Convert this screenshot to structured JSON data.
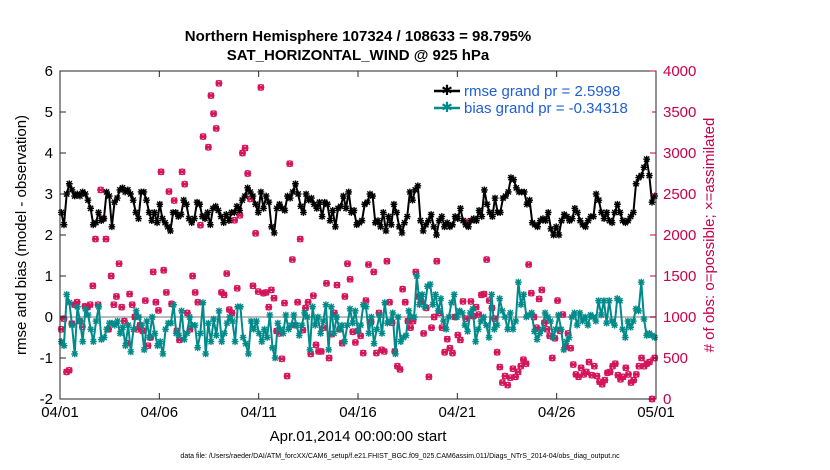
{
  "chart_data": {
    "type": "line",
    "title": "Northern Hemisphere 107324 / 108633 = 98.795%",
    "subtitle": "SAT_HORIZONTAL_WIND @ 925 hPa",
    "xlabel": "Apr.01,2014 00:00:00 start",
    "ylabel": "rmse and bias (model - observation)",
    "ylabel_right": "# of obs: o=possible; ×=assimilated",
    "footer": "data file: /Users/raeder/DAI/ATM_forcXX/CAM6_setup/f.e21.FHIST_BGC.f09_025.CAM6assim.011/Diags_NTrS_2014-04/obs_diag_output.nc",
    "xlim": [
      0,
      30
    ],
    "ylim": [
      -2,
      6
    ],
    "ylim_right": [
      0,
      4000
    ],
    "x_ticks": [
      0,
      5,
      10,
      15,
      20,
      25,
      30
    ],
    "x_tick_labels": [
      "04/01",
      "04/06",
      "04/11",
      "04/16",
      "04/21",
      "04/26",
      "05/01"
    ],
    "y_ticks": [
      -2,
      -1,
      0,
      1,
      2,
      3,
      4,
      5,
      6
    ],
    "y_tick_labels": [
      "-2",
      "-1",
      "0",
      "1",
      "2",
      "3",
      "4",
      "5",
      "6"
    ],
    "y_right_ticks": [
      0,
      500,
      1000,
      1500,
      2000,
      2500,
      3000,
      3500,
      4000
    ],
    "y_right_tick_labels": [
      "0",
      "500",
      "1000",
      "1500",
      "2000",
      "2500",
      "3000",
      "3500",
      "4000"
    ],
    "zero_line": 0,
    "series": [
      {
        "name": "rmse grand pr = 2.5998",
        "color": "#000000",
        "marker": "star",
        "values": [
          2.55,
          2.25,
          3.0,
          3.25,
          3.1,
          2.95,
          3.0,
          2.95,
          3.05,
          3.0,
          2.85,
          2.65,
          2.25,
          2.3,
          2.55,
          2.35,
          2.4,
          3.05,
          2.95,
          2.2,
          2.8,
          2.9,
          3.1,
          3.15,
          3.05,
          3.1,
          3.0,
          2.85,
          2.55,
          2.4,
          3.05,
          3.05,
          2.85,
          2.55,
          2.35,
          2.55,
          2.3,
          2.75,
          2.4,
          2.3,
          2.2,
          2.1,
          2.55,
          2.55,
          2.45,
          2.5,
          2.85,
          2.75,
          2.4,
          2.3,
          2.4,
          2.8,
          2.75,
          2.45,
          2.4,
          2.55,
          2.25,
          2.65,
          2.7,
          2.6,
          2.45,
          2.3,
          2.5,
          2.35,
          2.55,
          2.55,
          2.7,
          2.6,
          2.85,
          2.95,
          3.15,
          3.05,
          2.95,
          2.75,
          2.55,
          3.05,
          2.65,
          2.95,
          2.8,
          2.2,
          2.05,
          2.65,
          2.75,
          2.65,
          2.6,
          2.95,
          2.9,
          3.05,
          3.25,
          3.0,
          2.7,
          2.55,
          3.0,
          2.85,
          2.9,
          2.75,
          2.65,
          2.8,
          2.45,
          2.8,
          2.75,
          2.35,
          2.6,
          2.2,
          2.65,
          2.7,
          2.95,
          2.65,
          3.05,
          2.55,
          2.6,
          2.25,
          2.3,
          2.35,
          2.75,
          2.8,
          3.0,
          2.95,
          2.3,
          2.35,
          2.2,
          2.55,
          2.1,
          2.45,
          2.25,
          2.75,
          2.55,
          2.2,
          2.05,
          2.3,
          2.45,
          3.05,
          2.85,
          3.1,
          3.2,
          2.35,
          2.1,
          2.25,
          2.35,
          2.5,
          2.2,
          2.0,
          2.35,
          2.45,
          2.2,
          2.3,
          2.2,
          2.25,
          2.45,
          2.4,
          2.65,
          2.35,
          2.25,
          2.2,
          2.35,
          2.4,
          2.35,
          2.6,
          2.45,
          3.1,
          2.75,
          2.55,
          2.45,
          2.9,
          2.55,
          2.55,
          2.9,
          2.95,
          3.05,
          3.4,
          3.35,
          3.15,
          3.05,
          3.05,
          3.05,
          2.75,
          2.85,
          2.3,
          2.25,
          2.2,
          2.35,
          2.4,
          2.35,
          2.55,
          2.15,
          2.0,
          2.2,
          2.0,
          2.35,
          2.5,
          2.45,
          2.35,
          2.4,
          2.65,
          2.55,
          2.35,
          2.25,
          2.2,
          2.35,
          2.45,
          2.45,
          3.0,
          2.85,
          2.55,
          2.4,
          2.55,
          2.35,
          2.3,
          2.55,
          2.75,
          2.55,
          2.35,
          2.3,
          2.35,
          2.45,
          2.55,
          3.25,
          3.4,
          3.45,
          3.65,
          3.85,
          3.45,
          2.8,
          2.95
        ]
      },
      {
        "name": "bias grand pr = -0.34318",
        "color": "#008a8a",
        "marker": "star",
        "values": [
          -0.6,
          -0.7,
          0.55,
          0.35,
          -0.2,
          -0.9,
          0.25,
          -0.1,
          -0.6,
          0.2,
          0.05,
          -0.3,
          -0.6,
          -0.1,
          0.25,
          -0.55,
          -0.5,
          -0.3,
          -0.15,
          -0.15,
          -0.2,
          -0.1,
          -0.4,
          -0.25,
          -0.7,
          -0.2,
          -0.85,
          -0.3,
          0.15,
          0.0,
          -0.2,
          -0.8,
          -0.1,
          -0.5,
          0.0,
          -0.4,
          -0.7,
          -0.6,
          -0.9,
          -0.3,
          -0.15,
          -0.15,
          0.3,
          -0.4,
          -0.45,
          0.15,
          -0.55,
          -0.4,
          0.0,
          -0.2,
          -0.2,
          -0.75,
          -0.4,
          0.35,
          -0.9,
          -0.15,
          -0.6,
          -0.05,
          -0.45,
          0.15,
          -0.6,
          -0.4,
          -0.15,
          0.0,
          -0.1,
          -0.6,
          0.25,
          0.25,
          -0.5,
          -0.65,
          -0.9,
          -0.1,
          -0.3,
          -0.1,
          -0.4,
          -0.6,
          -0.3,
          -0.5,
          0.05,
          -0.75,
          -1.0,
          -0.15,
          -0.3,
          -0.4,
          0.05,
          -0.3,
          -0.2,
          0.05,
          -0.2,
          -0.45,
          -0.2,
          0.1,
          0.0,
          -0.8,
          0.25,
          -0.2,
          0.0,
          -0.4,
          -0.1,
          0.3,
          -0.8,
          0.25,
          -0.4,
          0.0,
          -0.3,
          -0.2,
          -0.6,
          -0.2,
          0.2,
          -0.15,
          0.15,
          -0.35,
          -0.2,
          0.3,
          0.25,
          -0.4,
          0.0,
          -0.65,
          -0.3,
          0.05,
          -0.4,
          0.35,
          -0.15,
          -0.1,
          0.1,
          -0.9,
          0.0,
          -0.6,
          -0.5,
          -0.45,
          0.15,
          0.0,
          0.0,
          1.0,
          0.3,
          0.55,
          0.25,
          0.75,
          0.8,
          0.3,
          0.55,
          0.15,
          0.45,
          -0.1,
          -0.3,
          0.0,
          0.35,
          0.55,
          0.0,
          0.15,
          0.1,
          -0.2,
          -0.35,
          0.1,
          0.2,
          -0.6,
          -0.3,
          -0.1,
          0.0,
          -0.2,
          -0.5,
          0.55,
          -0.3,
          -0.2,
          0.45,
          0.15,
          0.0,
          -0.3,
          0.1,
          -0.3,
          -0.1,
          0.85,
          0.3,
          0.55,
          0.0,
          0.05,
          0.1,
          -0.35,
          -0.55,
          -0.4,
          -0.3,
          0.1,
          0.0,
          -0.1,
          -0.5,
          -0.3,
          0.05,
          -0.3,
          -0.8,
          -0.6,
          -0.5,
          0.0,
          0.1,
          -0.2,
          0.1,
          -0.1,
          0.0,
          -0.2,
          0.05,
          0.0,
          -0.1,
          0.4,
          0.05,
          0.4,
          -0.15,
          0.4,
          -0.1,
          -0.2,
          0.45,
          0.4,
          -0.3,
          -0.5,
          -0.1,
          -0.25,
          -0.1,
          0.2,
          0.15,
          0.85,
          -0.05,
          -0.45,
          -0.4,
          -0.45,
          -0.5
        ]
      }
    ],
    "obs_possible": [
      850,
      980,
      330,
      350,
      920,
      1150,
      1180,
      950,
      880,
      1130,
      1120,
      1150,
      1380,
      1950,
      1150,
      2550,
      2200,
      1950,
      850,
      1500,
      1150,
      1250,
      1650,
      1120,
      950,
      680,
      1280,
      1150,
      1000,
      850,
      900,
      830,
      1200,
      650,
      750,
      1550,
      1180,
      1080,
      2770,
      1570,
      1300,
      2530,
      1160,
      2420,
      830,
      720,
      2770,
      2620,
      1050,
      850,
      1500,
      1300,
      1180,
      2120,
      3200,
      2230,
      3070,
      3700,
      3480,
      3300,
      3850,
      1300,
      1270,
      1530,
      1090,
      1050,
      2180,
      1350,
      2240,
      3000,
      3060,
      2750,
      2440,
      1380,
      2020,
      1310,
      3800,
      1290,
      1300,
      1120,
      1330,
      1230,
      830,
      800,
      490,
      1170,
      280,
      2870,
      1700,
      900,
      1180,
      1950,
      840,
      1110,
      1180,
      550,
      1260,
      660,
      580,
      580,
      870,
      1410,
      500,
      790,
      1050,
      1390,
      850,
      680,
      1250,
      1650,
      1460,
      820,
      690,
      830,
      770,
      560,
      1200,
      1640,
      940,
      1550,
      560,
      1050,
      600,
      580,
      1680,
      1180,
      930,
      580,
      400,
      360,
      1340,
      1180,
      950,
      870,
      950,
      1550,
      1250,
      1190,
      800,
      1110,
      270,
      870,
      1000,
      1680,
      1050,
      870,
      570,
      730,
      620,
      560,
      1000,
      780,
      720,
      1190,
      980,
      2160,
      1190,
      1010,
      1120,
      1030,
      1270,
      1280,
      1700,
      1200,
      1110,
      980,
      570,
      390,
      200,
      280,
      170,
      260,
      370,
      270,
      330,
      400,
      480,
      430,
      1640,
      1290,
      1000,
      870,
      1220,
      1330,
      930,
      850,
      770,
      500,
      740,
      1200,
      830,
      1030,
      640,
      800,
      620,
      420,
      300,
      270,
      380,
      300,
      330,
      450,
      290,
      400,
      280,
      210,
      180,
      230,
      320,
      330,
      400,
      430,
      290,
      240,
      270,
      380,
      300,
      200,
      230,
      300,
      400,
      500,
      400,
      430,
      450,
      0,
      500
    ],
    "obs_assimilated": [
      850,
      980,
      330,
      350,
      920,
      1150,
      1180,
      950,
      880,
      1130,
      1120,
      1150,
      1380,
      1950,
      1150,
      2550,
      2200,
      1950,
      850,
      1500,
      1150,
      1250,
      1650,
      1120,
      950,
      680,
      1280,
      1150,
      1000,
      850,
      900,
      830,
      1200,
      650,
      750,
      1550,
      1180,
      1080,
      2770,
      1570,
      1300,
      2530,
      1160,
      2420,
      830,
      720,
      2770,
      2620,
      1050,
      850,
      1500,
      1300,
      1180,
      2120,
      3200,
      2230,
      3070,
      3700,
      3480,
      3300,
      3850,
      1300,
      1270,
      1530,
      1090,
      1050,
      2180,
      1350,
      2240,
      3000,
      3060,
      2750,
      2440,
      1380,
      2020,
      1310,
      3800,
      1290,
      1300,
      1120,
      1330,
      1230,
      830,
      800,
      490,
      1170,
      280,
      2870,
      1700,
      900,
      1180,
      1950,
      840,
      1110,
      1180,
      550,
      1260,
      660,
      580,
      580,
      870,
      1410,
      500,
      790,
      1050,
      1390,
      850,
      680,
      1250,
      1650,
      1460,
      820,
      690,
      830,
      770,
      560,
      1200,
      1640,
      940,
      1550,
      560,
      1050,
      600,
      580,
      1680,
      1180,
      930,
      580,
      400,
      360,
      1340,
      1180,
      950,
      870,
      950,
      1550,
      1250,
      1190,
      800,
      1110,
      270,
      870,
      1000,
      1680,
      1050,
      870,
      570,
      730,
      620,
      560,
      1000,
      780,
      720,
      1190,
      980,
      2160,
      1190,
      1010,
      1120,
      1030,
      1270,
      1280,
      1700,
      1200,
      1110,
      980,
      570,
      390,
      200,
      280,
      170,
      260,
      370,
      270,
      330,
      400,
      480,
      430,
      1640,
      1290,
      1000,
      870,
      1220,
      1330,
      930,
      850,
      770,
      500,
      740,
      1200,
      830,
      1030,
      640,
      800,
      620,
      420,
      300,
      270,
      380,
      300,
      330,
      450,
      290,
      400,
      280,
      210,
      180,
      230,
      320,
      330,
      400,
      430,
      290,
      240,
      270,
      380,
      300,
      200,
      230,
      300,
      400,
      500,
      400,
      430,
      450,
      0,
      500
    ],
    "legend": {
      "placement": "top-right",
      "entries": [
        "rmse grand pr = 2.5998",
        "bias grand pr = -0.34318"
      ]
    },
    "colors": {
      "rmse": "#000000",
      "bias": "#008a8a",
      "obs": "#d4145a",
      "right_axis": "#c8004b",
      "legend_text": "#1f5fd6",
      "zero_line": "#bbbbbb"
    }
  }
}
